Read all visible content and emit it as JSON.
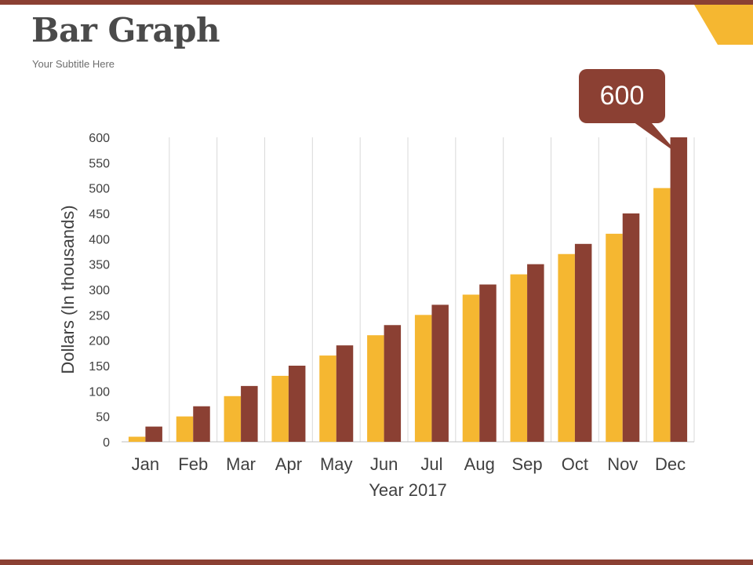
{
  "slide": {
    "title": "Bar Graph",
    "subtitle": "Your Subtitle Here"
  },
  "chart_data": {
    "type": "bar",
    "categories": [
      "Jan",
      "Feb",
      "Mar",
      "Apr",
      "May",
      "Jun",
      "Jul",
      "Aug",
      "Sep",
      "Oct",
      "Nov",
      "Dec"
    ],
    "series": [
      {
        "color": "#f5b731",
        "values": [
          10,
          50,
          90,
          130,
          170,
          210,
          250,
          290,
          330,
          370,
          410,
          500
        ]
      },
      {
        "color": "#8b4033",
        "values": [
          30,
          70,
          110,
          150,
          190,
          230,
          270,
          310,
          350,
          390,
          450,
          600
        ]
      }
    ],
    "xlabel": "Year 2017",
    "ylabel": "Dollars (In thousands)",
    "ylim": [
      0,
      600
    ],
    "yticks": [
      0,
      50,
      100,
      150,
      200,
      250,
      300,
      350,
      400,
      450,
      500,
      550,
      600
    ],
    "grid": "vertical",
    "callout": {
      "label": "600",
      "category": "Dec",
      "series": 1,
      "color": "#8b4033"
    }
  }
}
